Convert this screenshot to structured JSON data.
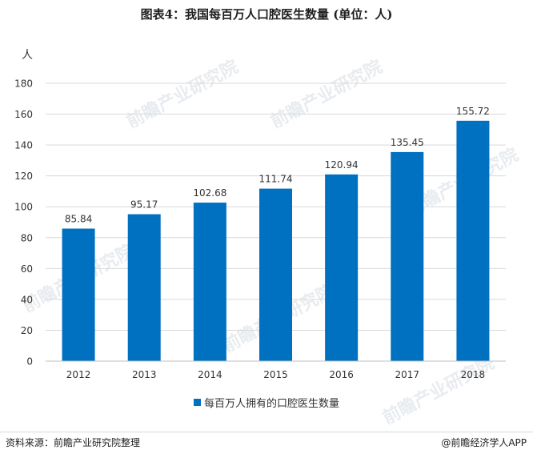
{
  "header": {
    "title": "图表4：我国每百万人口腔医生数量 (单位：人)",
    "unit_label": "人"
  },
  "chart_data": {
    "type": "bar",
    "categories": [
      "2012",
      "2013",
      "2014",
      "2015",
      "2016",
      "2017",
      "2018"
    ],
    "series": [
      {
        "name": "每百万人拥有的口腔医生数量",
        "values": [
          85.84,
          95.17,
          102.68,
          111.74,
          120.94,
          135.45,
          155.72
        ]
      }
    ],
    "value_labels": [
      "85.84",
      "95.17",
      "102.68",
      "111.74",
      "120.94",
      "135.45",
      "155.72"
    ],
    "yticks": [
      "0",
      "20",
      "40",
      "60",
      "80",
      "100",
      "120",
      "140",
      "160",
      "180"
    ],
    "ylim": [
      0,
      180
    ],
    "grid": true,
    "legend_position": "bottom",
    "bar_color": "#0070c0"
  },
  "watermark": {
    "text": "前瞻产业研究院"
  },
  "footer": {
    "source": "资料来源：前瞻产业研究院整理",
    "brand": "@前瞻经济学人APP"
  }
}
